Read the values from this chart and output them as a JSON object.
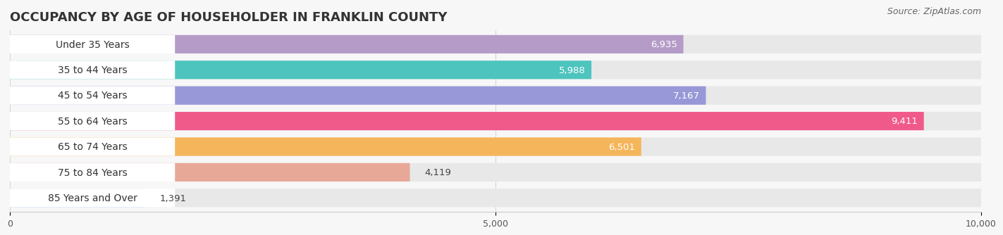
{
  "title": "OCCUPANCY BY AGE OF HOUSEHOLDER IN FRANKLIN COUNTY",
  "source": "Source: ZipAtlas.com",
  "categories": [
    "Under 35 Years",
    "35 to 44 Years",
    "45 to 54 Years",
    "55 to 64 Years",
    "65 to 74 Years",
    "75 to 84 Years",
    "85 Years and Over"
  ],
  "values": [
    6935,
    5988,
    7167,
    9411,
    6501,
    4119,
    1391
  ],
  "bar_colors": [
    "#b59cc8",
    "#4ec4be",
    "#9898d8",
    "#f05a8a",
    "#f5b55a",
    "#e8a898",
    "#a0c8f0"
  ],
  "bar_height": 0.72,
  "xlim": [
    0,
    10000
  ],
  "xticks": [
    0,
    5000,
    10000
  ],
  "xticklabels": [
    "0",
    "5,000",
    "10,000"
  ],
  "title_fontsize": 13,
  "source_fontsize": 9,
  "label_fontsize": 10,
  "value_fontsize": 9.5,
  "background_color": "#f7f7f7",
  "bar_bg_color": "#e8e8e8",
  "label_bg_color": "#ffffff"
}
